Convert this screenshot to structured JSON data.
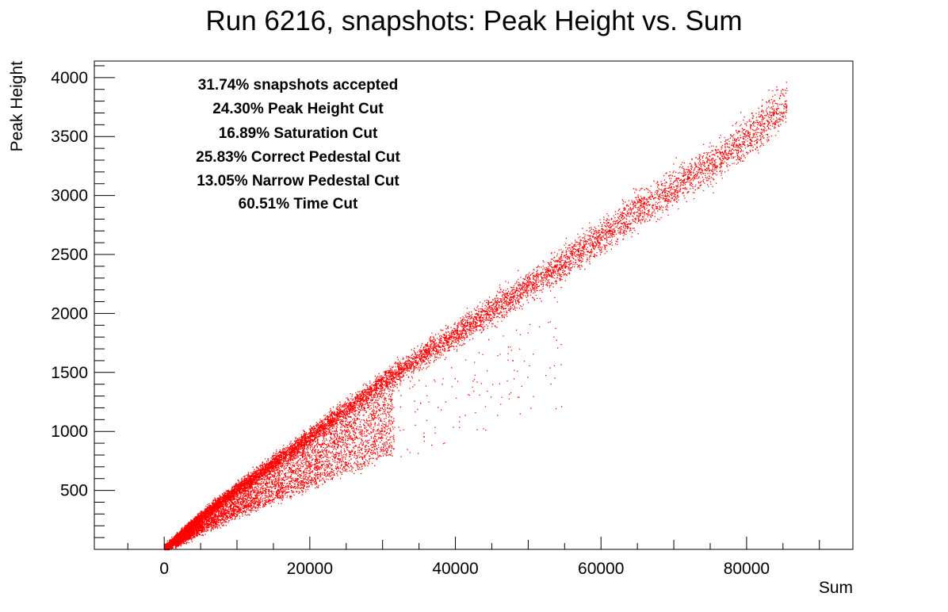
{
  "chart_data": {
    "type": "scatter",
    "title": "Run 6216, snapshots: Peak Height vs. Sum",
    "xlabel": "Sum",
    "ylabel": "Peak Height",
    "xlim": [
      -9600,
      94600
    ],
    "ylim": [
      0,
      4140
    ],
    "x_ticks": [
      0,
      20000,
      40000,
      60000,
      80000
    ],
    "y_ticks": [
      500,
      1000,
      1500,
      2000,
      2500,
      3000,
      3500,
      4000
    ],
    "grid": false,
    "marker_color": "#ff0000",
    "annotations": [
      "31.74% snapshots accepted",
      "24.30% Peak Height Cut",
      "16.89% Saturation Cut",
      "25.83% Correct Pedestal Cut",
      "13.05% Narrow Pedestal Cut",
      "60.51% Time Cut"
    ],
    "series": [
      {
        "description_points": [
          [
            0,
            0
          ],
          [
            5000,
            280
          ],
          [
            10000,
            520
          ],
          [
            15000,
            740
          ],
          [
            20000,
            960
          ],
          [
            25000,
            1190
          ],
          [
            30000,
            1420
          ],
          [
            35000,
            1630
          ],
          [
            40000,
            1830
          ],
          [
            45000,
            2030
          ],
          [
            50000,
            2240
          ],
          [
            55000,
            2440
          ],
          [
            60000,
            2650
          ],
          [
            65000,
            2880
          ],
          [
            70000,
            3070
          ],
          [
            75000,
            3270
          ],
          [
            80000,
            3490
          ],
          [
            85000,
            3760
          ]
        ],
        "values": [
          [
            0,
            0
          ],
          [
            5000,
            280
          ],
          [
            10000,
            520
          ],
          [
            15000,
            740
          ],
          [
            20000,
            960
          ],
          [
            25000,
            1190
          ],
          [
            30000,
            1420
          ],
          [
            35000,
            1630
          ],
          [
            40000,
            1830
          ],
          [
            45000,
            2030
          ],
          [
            50000,
            2240
          ],
          [
            55000,
            2440
          ],
          [
            60000,
            2650
          ],
          [
            65000,
            2880
          ],
          [
            70000,
            3070
          ],
          [
            75000,
            3270
          ],
          [
            80000,
            3490
          ],
          [
            85000,
            3760
          ]
        ]
      }
    ]
  }
}
